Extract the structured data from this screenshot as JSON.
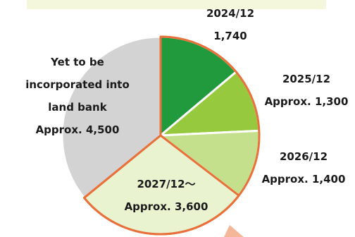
{
  "chart_data": {
    "type": "pie",
    "title": "",
    "slices": [
      {
        "label": "2024/12",
        "value_text": "1,740",
        "value": 1740,
        "color": "#219a3d"
      },
      {
        "label": "2025/12",
        "value_text": "Approx. 1,300",
        "value": 1300,
        "color": "#96c93d"
      },
      {
        "label": "2026/12",
        "value_text": "Approx. 1,400",
        "value": 1400,
        "color": "#c4e08c"
      },
      {
        "label": "2027/12～",
        "value_text": "Approx. 3,600",
        "value": 3600,
        "color": "#e9f3d0",
        "highlighted": true
      },
      {
        "label": "Yet to be incorporated into land bank",
        "label_lines": [
          "Yet to be",
          "incorporated into",
          "land bank"
        ],
        "value_text": "Approx. 4,500",
        "value": 4500,
        "color": "#d3d3d3"
      }
    ],
    "highlight_color": "#e8703a",
    "start_angle_deg": 0,
    "direction": "clockwise"
  }
}
